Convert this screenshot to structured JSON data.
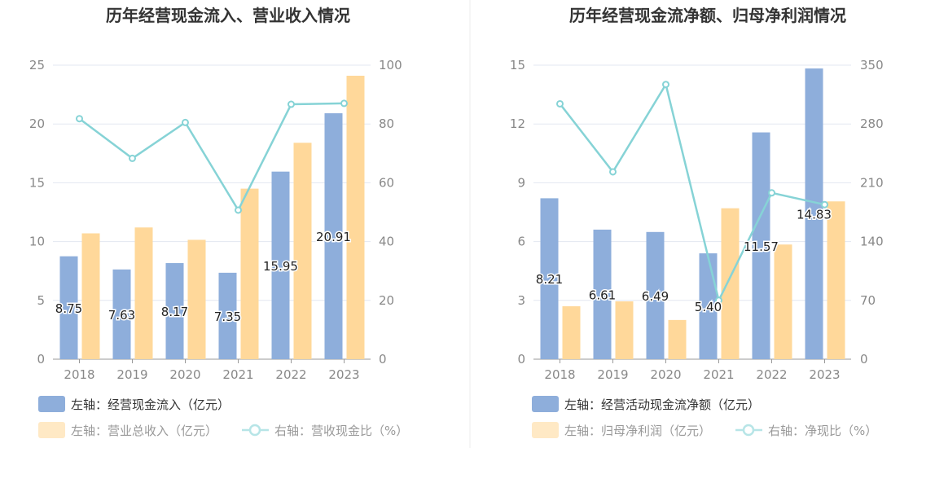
{
  "colors": {
    "bar_primary": "#8eaedb",
    "bar_secondary": "#ffd89a",
    "line": "#86d3d6",
    "axis_text": "#888888",
    "grid": "#e3e7f1",
    "title": "#333333"
  },
  "chart_data": [
    {
      "type": "bar",
      "title": "历年经营现金流入、营业收入情况",
      "categories": [
        "2018",
        "2019",
        "2020",
        "2021",
        "2022",
        "2023"
      ],
      "y_left": {
        "ticks": [
          "0",
          "5",
          "10",
          "15",
          "20",
          "25"
        ],
        "lim": [
          0,
          25
        ]
      },
      "y_right": {
        "ticks": [
          "0",
          "20",
          "40",
          "60",
          "80",
          "100"
        ],
        "lim": [
          0,
          100
        ]
      },
      "series": [
        {
          "name": "左轴：经营现金流入（亿元）",
          "axis": "left",
          "kind": "bar",
          "values": [
            8.75,
            7.63,
            8.17,
            7.35,
            15.95,
            20.91
          ],
          "labels": [
            "8.75",
            "7.63",
            "8.17",
            "7.35",
            "15.95",
            "20.91"
          ]
        },
        {
          "name": "左轴：营业总收入（亿元）",
          "axis": "left",
          "kind": "bar",
          "values": [
            10.7,
            11.2,
            10.15,
            14.5,
            18.4,
            24.1
          ]
        },
        {
          "name": "右轴：营收现金比（%）",
          "axis": "right",
          "kind": "line",
          "values": [
            81.8,
            68.3,
            80.5,
            50.7,
            86.7,
            87.0
          ]
        }
      ],
      "grid": true,
      "legend": "bottom"
    },
    {
      "type": "bar",
      "title": "历年经营现金流净额、归母净利润情况",
      "categories": [
        "2018",
        "2019",
        "2020",
        "2021",
        "2022",
        "2023"
      ],
      "y_left": {
        "ticks": [
          "0",
          "3",
          "6",
          "9",
          "12",
          "15"
        ],
        "lim": [
          0,
          15
        ]
      },
      "y_right": {
        "ticks": [
          "0",
          "70",
          "140",
          "210",
          "280",
          "350"
        ],
        "lim": [
          0,
          350
        ]
      },
      "series": [
        {
          "name": "左轴：经营活动现金流净额（亿元）",
          "axis": "left",
          "kind": "bar",
          "values": [
            8.21,
            6.61,
            6.49,
            5.4,
            11.57,
            14.83
          ],
          "labels": [
            "8.21",
            "6.61",
            "6.49",
            "5.40",
            "11.57",
            "14.83"
          ]
        },
        {
          "name": "左轴：归母净利润（亿元）",
          "axis": "left",
          "kind": "bar",
          "values": [
            2.7,
            2.95,
            2.0,
            7.7,
            5.85,
            8.05
          ]
        },
        {
          "name": "右轴：净现比（%）",
          "axis": "right",
          "kind": "line",
          "values": [
            304,
            223,
            327,
            70,
            198,
            184
          ]
        }
      ],
      "grid": true,
      "legend": "bottom"
    }
  ]
}
